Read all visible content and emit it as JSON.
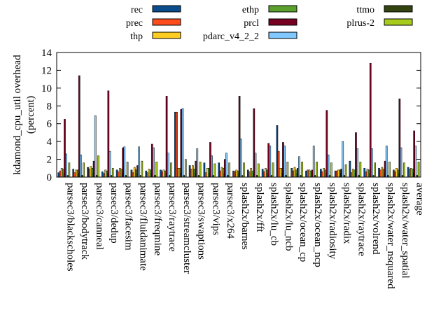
{
  "chart_data": {
    "type": "bar",
    "title": "",
    "xlabel": "",
    "ylabel_lines": [
      "kdamond_cpu_util overhead",
      "(percent)"
    ],
    "ylim": [
      0,
      14
    ],
    "yticks": [
      0,
      2,
      4,
      6,
      8,
      10,
      12,
      14
    ],
    "legend_position": "top",
    "categories": [
      "parsec3/blackscholes",
      "parsec3/bodytrack",
      "parsec3/canneal",
      "parsec3/dedup",
      "parsec3/facesim",
      "parsec3/fluidanimate",
      "parsec3/freqmine",
      "parsec3/raytrace",
      "parsec3/streamcluster",
      "parsec3/swaptions",
      "parsec3/vips",
      "parsec3/x264",
      "splash2x/barnes",
      "splash2x/fft",
      "splash2x/lu_cb",
      "splash2x/lu_ncb",
      "splash2x/ocean_cp",
      "splash2x/ocean_ncp",
      "splash2x/radiosity",
      "splash2x/radix",
      "splash2x/raytrace",
      "splash2x/volrend",
      "splash2x/water_nsquared",
      "splash2x/water_spatial",
      "average"
    ],
    "series": [
      {
        "name": "rec",
        "color": "#0a4c8c",
        "values": [
          0.5,
          0.9,
          1.1,
          0.6,
          0.8,
          0.8,
          0.7,
          0.8,
          7.3,
          1.3,
          1.6,
          1.6,
          0.7,
          0.8,
          0.9,
          5.8,
          1.0,
          0.7,
          0.9,
          0.7,
          1.8,
          1.0,
          1.0,
          0.8,
          1.1
        ]
      },
      {
        "name": "prec",
        "color": "#ff4c1c",
        "values": [
          0.7,
          0.5,
          0.9,
          0.4,
          0.6,
          0.5,
          0.5,
          0.6,
          7.3,
          0.9,
          0.5,
          0.7,
          0.6,
          0.6,
          0.6,
          2.9,
          0.7,
          0.8,
          0.6,
          0.7,
          0.5,
          0.6,
          0.8,
          0.6,
          0.9
        ]
      },
      {
        "name": "thp",
        "color": "#ffcc22",
        "values": [
          1.0,
          0.8,
          1.2,
          0.8,
          1.0,
          1.1,
          0.9,
          0.8,
          1.0,
          1.3,
          1.0,
          1.1,
          0.8,
          1.0,
          1.0,
          1.0,
          1.1,
          0.8,
          1.0,
          0.8,
          0.9,
          0.9,
          1.1,
          1.0,
          1.0
        ]
      },
      {
        "name": "ethp",
        "color": "#5aa02c",
        "values": [
          0.9,
          0.8,
          1.0,
          0.7,
          0.9,
          0.8,
          0.8,
          0.7,
          1.0,
          0.9,
          1.0,
          1.0,
          0.7,
          0.7,
          0.8,
          1.0,
          0.8,
          0.7,
          0.8,
          0.8,
          0.8,
          0.8,
          0.9,
          0.8,
          0.9
        ]
      },
      {
        "name": "prcl",
        "color": "#770022",
        "values": [
          6.5,
          11.4,
          1.8,
          9.7,
          3.3,
          1.3,
          3.7,
          9.1,
          7.6,
          1.8,
          3.9,
          2.0,
          9.1,
          7.7,
          3.8,
          3.9,
          1.0,
          0.8,
          7.5,
          0.9,
          5.0,
          12.8,
          1.8,
          8.8,
          5.2
        ]
      },
      {
        "name": "pdarc_v4_2_2",
        "color": "#80c8ff",
        "values": [
          2.6,
          2.5,
          6.9,
          2.9,
          3.4,
          3.4,
          3.3,
          2.7,
          7.7,
          3.2,
          2.4,
          2.7,
          4.3,
          2.7,
          3.5,
          3.5,
          2.3,
          3.5,
          2.5,
          4.0,
          3.2,
          3.2,
          3.5,
          3.3,
          3.5
        ]
      },
      {
        "name": "ttmo",
        "color": "#334411",
        "values": [
          0.2,
          0.2,
          0.2,
          0.2,
          0.2,
          0.2,
          0.2,
          0.2,
          0.2,
          0.2,
          0.2,
          0.2,
          0.2,
          0.2,
          0.2,
          0.2,
          0.2,
          0.2,
          0.2,
          0.2,
          0.2,
          0.2,
          0.2,
          0.2,
          0.2
        ]
      },
      {
        "name": "plrus-2",
        "color": "#a8cc1c",
        "values": [
          1.6,
          1.6,
          2.4,
          1.0,
          1.7,
          1.8,
          1.7,
          1.6,
          2.0,
          1.7,
          1.5,
          1.6,
          1.6,
          1.5,
          1.6,
          1.7,
          1.7,
          1.7,
          1.6,
          1.4,
          1.7,
          1.6,
          1.7,
          1.6,
          1.7
        ]
      }
    ]
  }
}
